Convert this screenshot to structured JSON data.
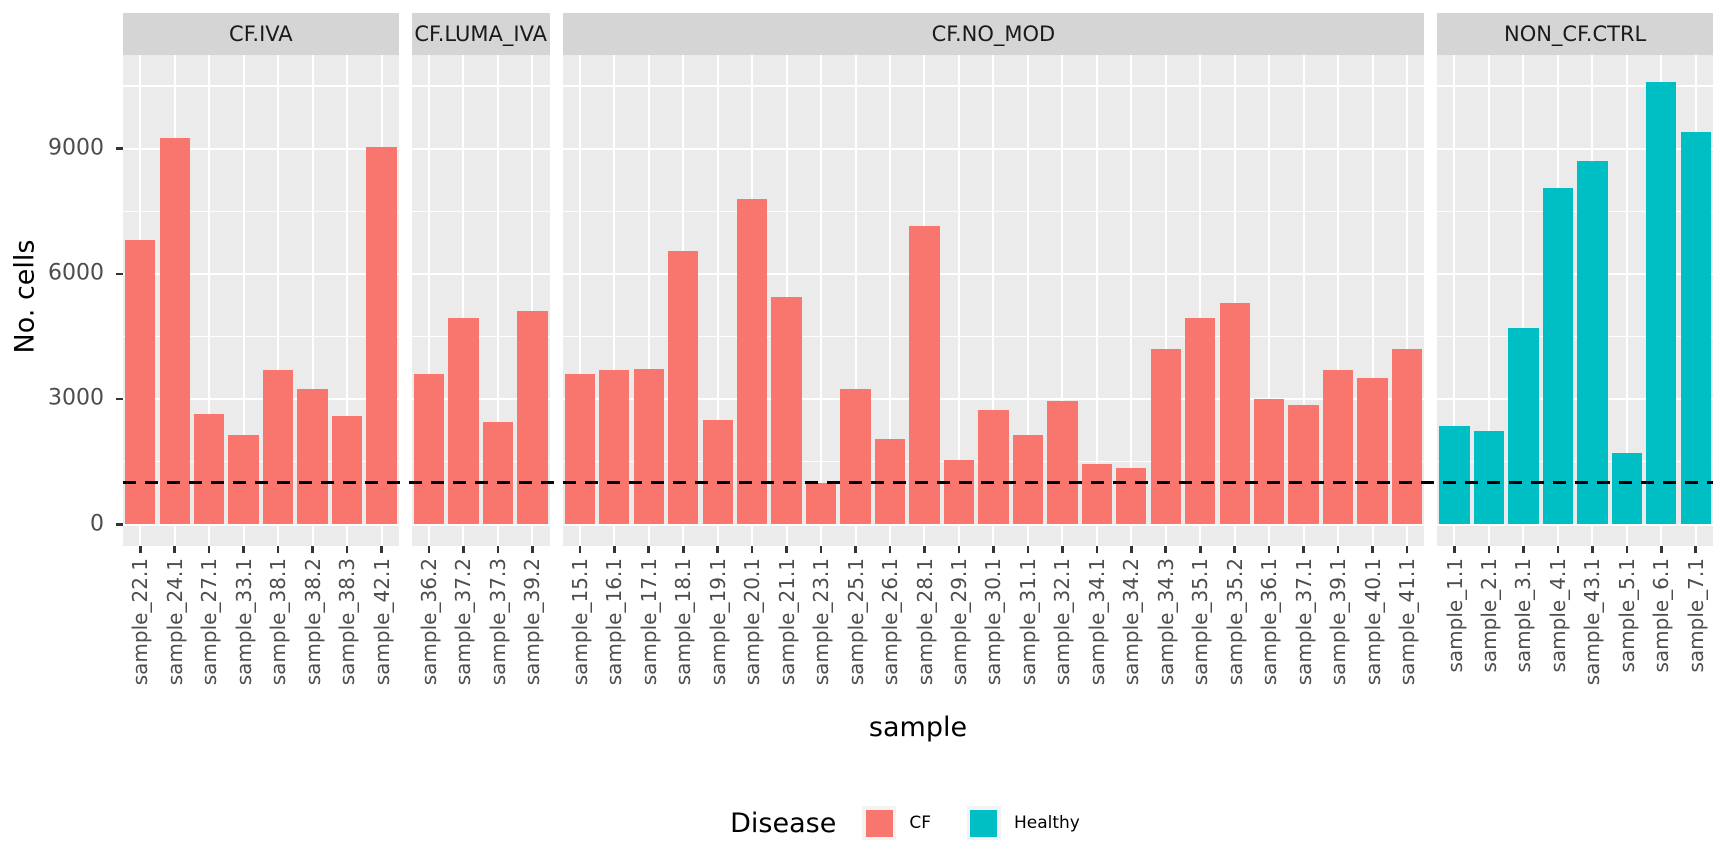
{
  "chart_data": {
    "type": "bar",
    "title": "",
    "xlabel": "sample",
    "ylabel": "No. cells",
    "y_ticks": [
      0,
      3000,
      6000,
      9000
    ],
    "y_minor_ticks": [
      1500,
      4500,
      7500,
      10500
    ],
    "ylim": [
      0,
      11240
    ],
    "grid": true,
    "hline": {
      "value": 1000,
      "style": "dashed",
      "color": "#000000"
    },
    "legend": {
      "title": "Disease",
      "position": "bottom",
      "entries": [
        {
          "label": "CF",
          "color": "#F8766D"
        },
        {
          "label": "Healthy",
          "color": "#00BFC4"
        }
      ]
    },
    "facets": [
      {
        "label": "CF.IVA",
        "group": "CF",
        "categories": [
          "sample_22.1",
          "sample_24.1",
          "sample_27.1",
          "sample_33.1",
          "sample_38.1",
          "sample_38.2",
          "sample_38.3",
          "sample_42.1"
        ],
        "values": [
          6800,
          9250,
          2650,
          2150,
          3700,
          3250,
          2600,
          9050
        ]
      },
      {
        "label": "CF.LUMA_IVA",
        "group": "CF",
        "categories": [
          "sample_36.2",
          "sample_37.2",
          "sample_37.3",
          "sample_39.2"
        ],
        "values": [
          3600,
          4950,
          2450,
          5100
        ]
      },
      {
        "label": "CF.NO_MOD",
        "group": "CF",
        "categories": [
          "sample_15.1",
          "sample_16.1",
          "sample_17.1",
          "sample_18.1",
          "sample_19.1",
          "sample_20.1",
          "sample_21.1",
          "sample_23.1",
          "sample_25.1",
          "sample_26.1",
          "sample_28.1",
          "sample_29.1",
          "sample_30.1",
          "sample_31.1",
          "sample_32.1",
          "sample_34.1",
          "sample_34.2",
          "sample_34.3",
          "sample_35.1",
          "sample_35.2",
          "sample_36.1",
          "sample_37.1",
          "sample_39.1",
          "sample_40.1",
          "sample_41.1"
        ],
        "values": [
          3600,
          3700,
          3720,
          6550,
          2500,
          7800,
          5450,
          1000,
          3250,
          2050,
          7150,
          1550,
          2750,
          2150,
          2950,
          1450,
          1350,
          4200,
          4950,
          5300,
          3000,
          2850,
          3700,
          3500,
          4200
        ]
      },
      {
        "label": "NON_CF.CTRL",
        "group": "Healthy",
        "categories": [
          "sample_1.1",
          "sample_2.1",
          "sample_3.1",
          "sample_4.1",
          "sample_43.1",
          "sample_5.1",
          "sample_6.1",
          "sample_7.1"
        ],
        "values": [
          2350,
          2250,
          4700,
          8050,
          8700,
          1700,
          10600,
          9400
        ]
      }
    ]
  },
  "colors": {
    "cf": "#F8766D",
    "healthy": "#00BFC4",
    "panel_bg": "#EBEBEB",
    "strip_bg": "#D5D5D5",
    "gridline": "#FFFFFF",
    "tick_text": "#4D4D4D",
    "axis_text": "#000000"
  }
}
